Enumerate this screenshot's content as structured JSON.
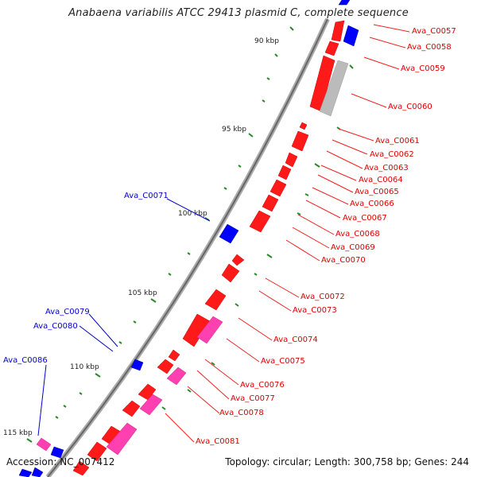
{
  "title": "Anabaena variabilis ATCC 29413 plasmid C, complete sequence",
  "footer": {
    "accession": "Accession: NC_007412",
    "summary": "Topology: circular; Length: 300,758 bp; Genes: 244"
  },
  "colors": {
    "forward_gene": "#ff0000",
    "reverse_gene": "#0000ff",
    "pink_gene": "#ff33aa",
    "gray_gene": "#bbbbbb",
    "label_red": "#dd0000",
    "label_blue": "#0000cc",
    "gc_tick": "#2a8a2a",
    "backbone": "#777777"
  },
  "scale_labels": [
    "90 kbp",
    "95 kbp",
    "100 kbp",
    "105 kbp",
    "110 kbp",
    "115 kbp"
  ],
  "gene_labels_right": [
    "Ava_C0057",
    "Ava_C0058",
    "Ava_C0059",
    "Ava_C0060",
    "Ava_C0061",
    "Ava_C0062",
    "Ava_C0063",
    "Ava_C0064",
    "Ava_C0065",
    "Ava_C0066",
    "Ava_C0067",
    "Ava_C0068",
    "Ava_C0069",
    "Ava_C0070",
    "Ava_C0072",
    "Ava_C0073",
    "Ava_C0074",
    "Ava_C0075",
    "Ava_C0076",
    "Ava_C0077",
    "Ava_C0078",
    "Ava_C0081"
  ],
  "gene_labels_left": [
    "Ava_C0071",
    "Ava_C0079",
    "Ava_C0080",
    "Ava_C0086"
  ]
}
